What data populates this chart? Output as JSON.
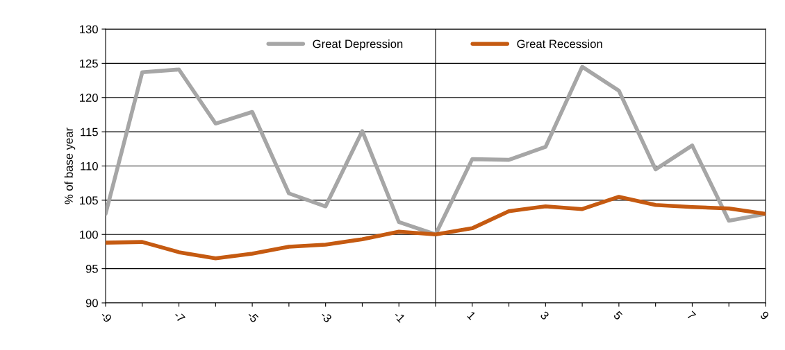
{
  "chart_data": {
    "type": "line",
    "ylabel": "% of base year",
    "x": [
      -9,
      -8,
      -7,
      -6,
      -5,
      -4,
      -3,
      -2,
      -1,
      0,
      1,
      2,
      3,
      4,
      5,
      6,
      7,
      8,
      9
    ],
    "series": [
      {
        "name": "Great Depression",
        "color": "#a6a6a6",
        "values": [
          103,
          123.7,
          124.1,
          116.2,
          117.9,
          106,
          104.1,
          115.1,
          101.8,
          100,
          111,
          110.9,
          112.8,
          124.5,
          121,
          109.5,
          113,
          102,
          103
        ]
      },
      {
        "name": "Great Recession",
        "color": "#c55a11",
        "values": [
          98.8,
          98.9,
          97.4,
          96.5,
          97.2,
          98.2,
          98.5,
          99.3,
          100.4,
          100,
          100.9,
          103.4,
          104.1,
          103.7,
          105.5,
          104.3,
          104,
          103.8,
          103
        ]
      }
    ],
    "xlim": [
      -9,
      9
    ],
    "xticks": [
      -9,
      {
        "value": -8,
        "label": null
      },
      -7,
      {
        "value": -6,
        "label": null
      },
      -5,
      {
        "value": -4,
        "label": null
      },
      -3,
      {
        "value": -2,
        "label": null
      },
      -1,
      {
        "value": 0,
        "label": null
      },
      1,
      {
        "value": 2,
        "label": null
      },
      3,
      {
        "value": 4,
        "label": null
      },
      5,
      {
        "value": 6,
        "label": null
      },
      7,
      {
        "value": 8,
        "label": null
      },
      9
    ],
    "ylim": [
      90,
      130
    ],
    "yticks": [
      90,
      95,
      100,
      105,
      110,
      115,
      120,
      125,
      130
    ],
    "ref_lines": [
      {
        "axis": "x",
        "value": 0,
        "color": "#000000"
      }
    ],
    "grid": "y",
    "legend": "top",
    "marker": "none",
    "line_style": "solid"
  }
}
